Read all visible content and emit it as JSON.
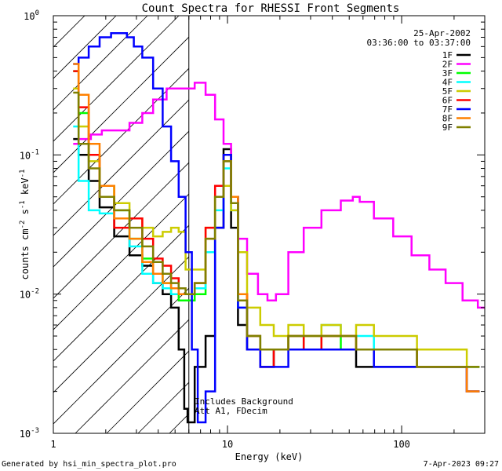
{
  "chart_data": {
    "type": "line",
    "title": "Count Spectra for RHESSI Front Segments",
    "xlabel": "Energy (keV)",
    "ylabel_parts": {
      "main": "counts cm",
      "exp1": "-2",
      "mid": " s",
      "exp2": "-1",
      "tail": " keV",
      "exp3": "-1"
    },
    "x_scale": "log",
    "y_scale": "log",
    "xlim": [
      1,
      300
    ],
    "ylim": [
      0.001,
      1
    ],
    "x_ticks": [
      {
        "value": 1,
        "label": "1"
      },
      {
        "value": 10,
        "label": "10"
      },
      {
        "value": 100,
        "label": "100"
      }
    ],
    "y_ticks": [
      {
        "value": 1,
        "base": "10",
        "exp": "0"
      },
      {
        "value": 0.1,
        "base": "10",
        "exp": "-1"
      },
      {
        "value": 0.01,
        "base": "10",
        "exp": "-2"
      },
      {
        "value": 0.001,
        "base": "10",
        "exp": "-3"
      }
    ],
    "date": "25-Apr-2002",
    "time_range": "03:36:00 to 03:37:00",
    "annotations": [
      "Includes Background",
      "Att A1, FDecim"
    ],
    "hatched_region_xmax": 6,
    "legend_position": "top-right",
    "series": [
      {
        "name": "1F",
        "color": "#000000",
        "points": [
          [
            1.3,
            0.13
          ],
          [
            1.5,
            0.1
          ],
          [
            1.7,
            0.065
          ],
          [
            2,
            0.042
          ],
          [
            2.5,
            0.026
          ],
          [
            3,
            0.019
          ],
          [
            3.5,
            0.016
          ],
          [
            4,
            0.012
          ],
          [
            4.5,
            0.01
          ],
          [
            5,
            0.008
          ],
          [
            5.5,
            0.004
          ],
          [
            5.8,
            0.0015
          ],
          [
            6,
            0.0012
          ],
          [
            7,
            0.003
          ],
          [
            8,
            0.005
          ],
          [
            9,
            0.03
          ],
          [
            10,
            0.11
          ],
          [
            11,
            0.03
          ],
          [
            12,
            0.006
          ],
          [
            14,
            0.004
          ],
          [
            17,
            0.003
          ],
          [
            20,
            0.004
          ],
          [
            25,
            0.004
          ],
          [
            30,
            0.004
          ],
          [
            40,
            0.004
          ],
          [
            50,
            0.004
          ],
          [
            60,
            0.003
          ],
          [
            80,
            0.003
          ],
          [
            100,
            0.003
          ],
          [
            150,
            0.003
          ],
          [
            200,
            0.003
          ],
          [
            280,
            0.002
          ]
        ]
      },
      {
        "name": "2F",
        "color": "#ff00ff",
        "points": [
          [
            1.3,
            0.12
          ],
          [
            1.5,
            0.13
          ],
          [
            1.8,
            0.14
          ],
          [
            2,
            0.15
          ],
          [
            2.5,
            0.15
          ],
          [
            3,
            0.17
          ],
          [
            3.5,
            0.2
          ],
          [
            4,
            0.25
          ],
          [
            5,
            0.3
          ],
          [
            6,
            0.3
          ],
          [
            7,
            0.33
          ],
          [
            8,
            0.27
          ],
          [
            9,
            0.18
          ],
          [
            10,
            0.12
          ],
          [
            11,
            0.05
          ],
          [
            12,
            0.025
          ],
          [
            14,
            0.014
          ],
          [
            16,
            0.01
          ],
          [
            18,
            0.009
          ],
          [
            20,
            0.01
          ],
          [
            25,
            0.02
          ],
          [
            30,
            0.03
          ],
          [
            40,
            0.04
          ],
          [
            50,
            0.047
          ],
          [
            55,
            0.05
          ],
          [
            60,
            0.046
          ],
          [
            80,
            0.035
          ],
          [
            100,
            0.026
          ],
          [
            130,
            0.019
          ],
          [
            160,
            0.015
          ],
          [
            200,
            0.012
          ],
          [
            250,
            0.009
          ],
          [
            300,
            0.008
          ]
        ]
      },
      {
        "name": "3F",
        "color": "#00ff00",
        "points": [
          [
            1.3,
            0.4
          ],
          [
            1.5,
            0.2
          ],
          [
            1.7,
            0.1
          ],
          [
            2,
            0.06
          ],
          [
            2.5,
            0.04
          ],
          [
            3,
            0.025
          ],
          [
            3.5,
            0.018
          ],
          [
            4,
            0.014
          ],
          [
            4.5,
            0.012
          ],
          [
            5,
            0.01
          ],
          [
            5.5,
            0.009
          ],
          [
            6,
            0.009
          ],
          [
            7,
            0.01
          ],
          [
            8,
            0.02
          ],
          [
            9,
            0.05
          ],
          [
            10,
            0.1
          ],
          [
            11,
            0.05
          ],
          [
            12,
            0.01
          ],
          [
            14,
            0.005
          ],
          [
            17,
            0.004
          ],
          [
            20,
            0.004
          ],
          [
            25,
            0.005
          ],
          [
            30,
            0.004
          ],
          [
            40,
            0.005
          ],
          [
            50,
            0.004
          ],
          [
            60,
            0.004
          ],
          [
            80,
            0.004
          ],
          [
            100,
            0.004
          ],
          [
            150,
            0.003
          ],
          [
            200,
            0.003
          ],
          [
            280,
            0.003
          ]
        ]
      },
      {
        "name": "4F",
        "color": "#00ffff",
        "points": [
          [
            1.3,
            0.16
          ],
          [
            1.5,
            0.065
          ],
          [
            1.7,
            0.04
          ],
          [
            2,
            0.038
          ],
          [
            2.5,
            0.035
          ],
          [
            3,
            0.022
          ],
          [
            3.5,
            0.014
          ],
          [
            4,
            0.012
          ],
          [
            4.5,
            0.011
          ],
          [
            5,
            0.01
          ],
          [
            5.5,
            0.01
          ],
          [
            6,
            0.01
          ],
          [
            7,
            0.011
          ],
          [
            8,
            0.02
          ],
          [
            9,
            0.04
          ],
          [
            10,
            0.08
          ],
          [
            11,
            0.04
          ],
          [
            12,
            0.008
          ],
          [
            14,
            0.005
          ],
          [
            17,
            0.004
          ],
          [
            20,
            0.004
          ],
          [
            25,
            0.005
          ],
          [
            30,
            0.005
          ],
          [
            40,
            0.006
          ],
          [
            50,
            0.005
          ],
          [
            60,
            0.005
          ],
          [
            80,
            0.004
          ],
          [
            100,
            0.004
          ],
          [
            150,
            0.003
          ],
          [
            200,
            0.003
          ],
          [
            280,
            0.003
          ]
        ]
      },
      {
        "name": "5F",
        "color": "#cccc00",
        "points": [
          [
            1.3,
            0.3
          ],
          [
            1.5,
            0.16
          ],
          [
            1.7,
            0.09
          ],
          [
            2,
            0.06
          ],
          [
            2.5,
            0.045
          ],
          [
            3,
            0.035
          ],
          [
            3.5,
            0.03
          ],
          [
            4,
            0.026
          ],
          [
            4.5,
            0.028
          ],
          [
            5,
            0.03
          ],
          [
            5.5,
            0.028
          ],
          [
            6,
            0.015
          ],
          [
            7,
            0.015
          ],
          [
            8,
            0.03
          ],
          [
            9,
            0.05
          ],
          [
            10,
            0.06
          ],
          [
            11,
            0.04
          ],
          [
            12,
            0.02
          ],
          [
            14,
            0.008
          ],
          [
            17,
            0.006
          ],
          [
            20,
            0.005
          ],
          [
            25,
            0.006
          ],
          [
            30,
            0.005
          ],
          [
            40,
            0.006
          ],
          [
            50,
            0.005
          ],
          [
            60,
            0.006
          ],
          [
            80,
            0.005
          ],
          [
            100,
            0.005
          ],
          [
            150,
            0.004
          ],
          [
            200,
            0.004
          ],
          [
            280,
            0.003
          ]
        ]
      },
      {
        "name": "6F",
        "color": "#ff0000",
        "points": [
          [
            1.3,
            0.4
          ],
          [
            1.5,
            0.22
          ],
          [
            1.7,
            0.1
          ],
          [
            2,
            0.05
          ],
          [
            2.5,
            0.03
          ],
          [
            3,
            0.035
          ],
          [
            3.5,
            0.025
          ],
          [
            4,
            0.018
          ],
          [
            4.5,
            0.016
          ],
          [
            5,
            0.013
          ],
          [
            5.5,
            0.01
          ],
          [
            6,
            0.01
          ],
          [
            7,
            0.012
          ],
          [
            8,
            0.03
          ],
          [
            9,
            0.06
          ],
          [
            10,
            0.1
          ],
          [
            11,
            0.05
          ],
          [
            12,
            0.01
          ],
          [
            14,
            0.005
          ],
          [
            17,
            0.003
          ],
          [
            20,
            0.004
          ],
          [
            25,
            0.005
          ],
          [
            30,
            0.004
          ],
          [
            40,
            0.005
          ],
          [
            50,
            0.005
          ],
          [
            60,
            0.004
          ],
          [
            80,
            0.004
          ],
          [
            100,
            0.004
          ],
          [
            150,
            0.003
          ],
          [
            200,
            0.003
          ],
          [
            280,
            0.002
          ]
        ]
      },
      {
        "name": "7F",
        "color": "#0000ff",
        "points": [
          [
            1.3,
            0.45
          ],
          [
            1.5,
            0.5
          ],
          [
            1.7,
            0.6
          ],
          [
            2,
            0.7
          ],
          [
            2.3,
            0.75
          ],
          [
            2.5,
            0.75
          ],
          [
            2.8,
            0.7
          ],
          [
            3,
            0.6
          ],
          [
            3.5,
            0.5
          ],
          [
            4,
            0.3
          ],
          [
            4.5,
            0.16
          ],
          [
            5,
            0.09
          ],
          [
            5.5,
            0.05
          ],
          [
            6,
            0.02
          ],
          [
            6.5,
            0.004
          ],
          [
            7,
            0.0012
          ],
          [
            8,
            0.002
          ],
          [
            9,
            0.03
          ],
          [
            10,
            0.1
          ],
          [
            11,
            0.05
          ],
          [
            12,
            0.008
          ],
          [
            14,
            0.004
          ],
          [
            17,
            0.003
          ],
          [
            20,
            0.003
          ],
          [
            25,
            0.004
          ],
          [
            30,
            0.004
          ],
          [
            40,
            0.004
          ],
          [
            50,
            0.004
          ],
          [
            60,
            0.004
          ],
          [
            80,
            0.003
          ],
          [
            100,
            0.003
          ],
          [
            150,
            0.003
          ],
          [
            200,
            0.003
          ],
          [
            280,
            0.002
          ]
        ]
      },
      {
        "name": "8F",
        "color": "#ff8000",
        "points": [
          [
            1.3,
            0.45
          ],
          [
            1.5,
            0.27
          ],
          [
            1.7,
            0.12
          ],
          [
            2,
            0.06
          ],
          [
            2.5,
            0.035
          ],
          [
            3,
            0.025
          ],
          [
            3.5,
            0.017
          ],
          [
            4,
            0.014
          ],
          [
            4.5,
            0.012
          ],
          [
            5,
            0.011
          ],
          [
            5.5,
            0.01
          ],
          [
            6,
            0.01
          ],
          [
            7,
            0.012
          ],
          [
            8,
            0.025
          ],
          [
            9,
            0.05
          ],
          [
            10,
            0.09
          ],
          [
            11,
            0.05
          ],
          [
            12,
            0.01
          ],
          [
            14,
            0.005
          ],
          [
            17,
            0.004
          ],
          [
            20,
            0.004
          ],
          [
            25,
            0.005
          ],
          [
            30,
            0.005
          ],
          [
            40,
            0.005
          ],
          [
            50,
            0.005
          ],
          [
            60,
            0.004
          ],
          [
            80,
            0.004
          ],
          [
            100,
            0.004
          ],
          [
            150,
            0.003
          ],
          [
            200,
            0.003
          ],
          [
            280,
            0.002
          ]
        ]
      },
      {
        "name": "9F",
        "color": "#808000",
        "points": [
          [
            1.3,
            0.28
          ],
          [
            1.5,
            0.12
          ],
          [
            1.7,
            0.08
          ],
          [
            2,
            0.05
          ],
          [
            2.5,
            0.04
          ],
          [
            3,
            0.03
          ],
          [
            3.5,
            0.022
          ],
          [
            4,
            0.017
          ],
          [
            4.5,
            0.014
          ],
          [
            5,
            0.012
          ],
          [
            5.5,
            0.011
          ],
          [
            6,
            0.01
          ],
          [
            7,
            0.012
          ],
          [
            8,
            0.025
          ],
          [
            9,
            0.05
          ],
          [
            10,
            0.09
          ],
          [
            11,
            0.045
          ],
          [
            12,
            0.009
          ],
          [
            14,
            0.005
          ],
          [
            17,
            0.004
          ],
          [
            20,
            0.004
          ],
          [
            25,
            0.005
          ],
          [
            30,
            0.005
          ],
          [
            40,
            0.005
          ],
          [
            50,
            0.005
          ],
          [
            60,
            0.004
          ],
          [
            80,
            0.004
          ],
          [
            100,
            0.004
          ],
          [
            150,
            0.003
          ],
          [
            200,
            0.003
          ],
          [
            280,
            0.003
          ]
        ]
      }
    ]
  },
  "footer": {
    "left": "Generated by hsi_min_spectra_plot.pro",
    "right": "7-Apr-2023 09:27"
  }
}
